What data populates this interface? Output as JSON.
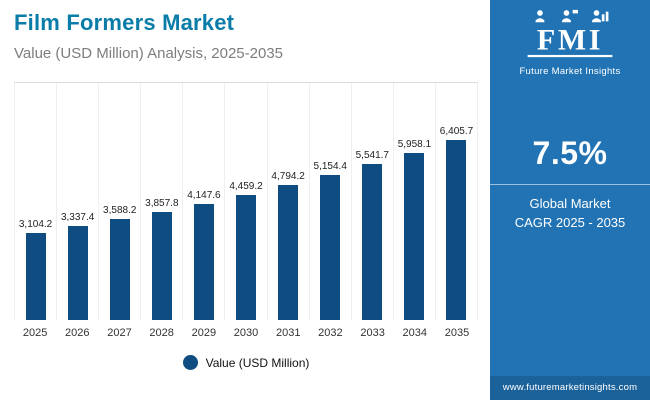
{
  "header": {
    "title": "Film Formers Market",
    "subtitle": "Value (USD Million) Analysis, 2025-2035"
  },
  "chart_data": {
    "type": "bar",
    "title": "Film Formers Market",
    "subtitle": "Value (USD Million) Analysis, 2025-2035",
    "categories": [
      "2025",
      "2026",
      "2027",
      "2028",
      "2029",
      "2030",
      "2031",
      "2032",
      "2033",
      "2034",
      "2035"
    ],
    "values": [
      3104.2,
      3337.4,
      3588.2,
      3857.8,
      4147.6,
      4459.2,
      4794.2,
      5154.4,
      5541.7,
      5958.1,
      6405.7
    ],
    "value_labels": [
      "3,104.2",
      "3,337.4",
      "3,588.2",
      "3,857.8",
      "4,147.6",
      "4,459.2",
      "4,794.2",
      "5,154.4",
      "5,541.7",
      "5,958.1",
      "6,405.7"
    ],
    "legend": "Value (USD Million)",
    "xlabel": "",
    "ylabel": "Value (USD Million)",
    "ylim": [
      0,
      6405.7
    ],
    "bar_color": "#0f4c81",
    "grid": "vertical-light",
    "legend_position": "bottom-center"
  },
  "panel": {
    "logo_text": "FMI",
    "brand_name": "Future Market Insights",
    "cagr_value": "7.5%",
    "stat_line1": "Global Market",
    "stat_line2": "CAGR 2025 - 2035",
    "website": "www.futuremarketinsights.com",
    "panel_color": "#2173b4"
  }
}
